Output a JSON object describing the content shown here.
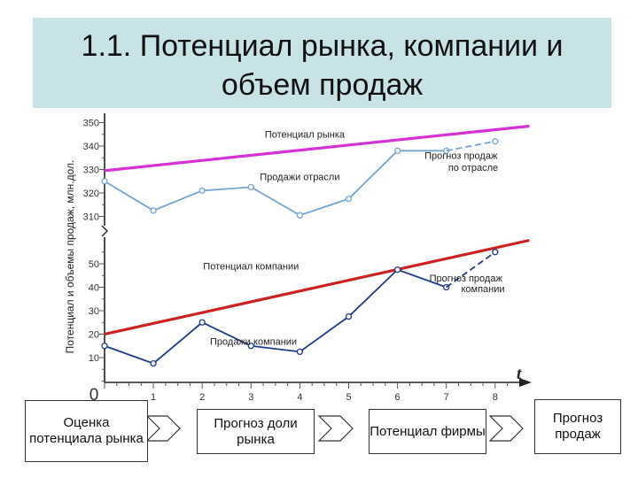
{
  "title": "1.1. Потенциал рынка, компании и\nобъем продаж",
  "chart_data": {
    "type": "line",
    "ylabel": "Потенциал и объемы продаж, млн.дол.",
    "xlabel": "t",
    "x_ticks": [
      "0",
      "1",
      "2",
      "3",
      "4",
      "5",
      "6",
      "7",
      "8"
    ],
    "panels": [
      {
        "name": "upper",
        "ylim": [
          305,
          355
        ],
        "y_ticks": [
          310,
          320,
          330,
          340,
          350
        ],
        "series": [
          {
            "name": "Потенциал рынка",
            "color": "#d631d6",
            "x": [
              0,
              8.7
            ],
            "y": [
              329.5,
              348.5
            ]
          },
          {
            "name": "Продажи отрасли",
            "color": "#74a3d6",
            "x": [
              0,
              1,
              2,
              3,
              4,
              5,
              6,
              7
            ],
            "y": [
              325,
              312.5,
              321,
              322.5,
              310.5,
              317.5,
              338,
              338
            ]
          },
          {
            "name": "Прогноз продаж по отрасле",
            "color": "#74a3d6",
            "dashed": true,
            "x": [
              7,
              8
            ],
            "y": [
              338,
              342
            ]
          }
        ],
        "annotations": [
          {
            "text": "Потенциал рынка",
            "x": 4.1,
            "y": 343.5
          },
          {
            "text": "Продажи отрасли",
            "x": 4.0,
            "y": 325.5
          },
          {
            "text": "Прогноз продаж",
            "x": 7.3,
            "y": 334.5
          },
          {
            "text": "по отрасле",
            "x": 7.55,
            "y": 329.5
          }
        ]
      },
      {
        "name": "lower",
        "ylim": [
          0,
          55
        ],
        "y_ticks": [
          10,
          20,
          30,
          40,
          50
        ],
        "series": [
          {
            "name": "Потенциал компании",
            "color": "#cc2222",
            "x": [
              0,
              8.7
            ],
            "y": [
              20,
              60
            ]
          },
          {
            "name": "Продажи компании",
            "color": "#203a8c",
            "x": [
              0,
              1,
              2,
              3,
              4,
              5,
              6,
              7
            ],
            "y": [
              15,
              7.5,
              25,
              15,
              12.5,
              27.5,
              47.5,
              40
            ]
          },
          {
            "name": "Прогноз продаж компании",
            "color": "#203a8c",
            "dashed": true,
            "x": [
              7,
              8
            ],
            "y": [
              40,
              55
            ]
          }
        ],
        "annotations": [
          {
            "text": "Потенциал компании",
            "x": 3.0,
            "y": 47.5
          },
          {
            "text": "Продажи компании",
            "x": 3.05,
            "y": 15.5
          },
          {
            "text": "Прогноз продаж",
            "x": 7.4,
            "y": 42.5
          },
          {
            "text": "компании",
            "x": 7.75,
            "y": 38
          }
        ]
      }
    ],
    "flow": [
      "Оценка\nпотенциала\nрынка",
      "Прогноз доли\nрынка",
      "Потенциал\nфирмы",
      "Прогноз\nпродаж"
    ]
  }
}
